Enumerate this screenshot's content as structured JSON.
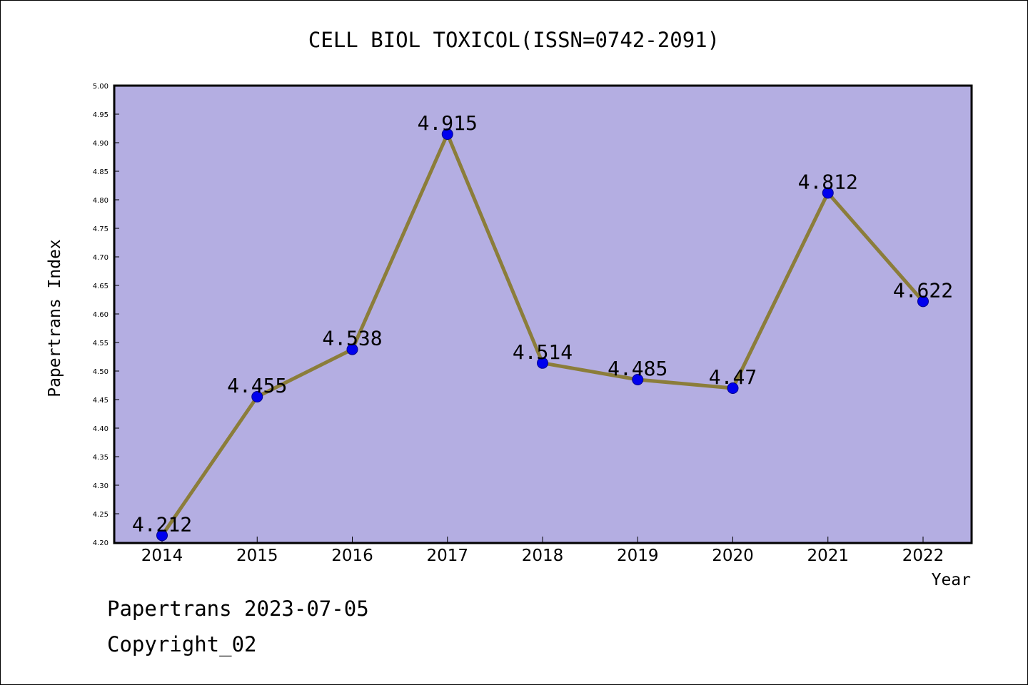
{
  "chart_data": {
    "type": "line",
    "title": "CELL BIOL TOXICOL(ISSN=0742-2091)",
    "xlabel": "Year",
    "ylabel": "Papertrans Index",
    "categories": [
      "2014",
      "2015",
      "2016",
      "2017",
      "2018",
      "2019",
      "2020",
      "2021",
      "2022"
    ],
    "series": [
      {
        "values": [
          4.212,
          4.455,
          4.538,
          4.915,
          4.514,
          4.485,
          4.47,
          4.812,
          4.622
        ],
        "labels": [
          "4.212",
          "4.455",
          "4.538",
          "4.915",
          "4.514",
          "4.485",
          "4.47",
          "4.812",
          "4.622"
        ]
      }
    ],
    "ylim": [
      4.2,
      5.0
    ],
    "yticks": [
      "4.20",
      "4.25",
      "4.30",
      "4.35",
      "4.40",
      "4.45",
      "4.50",
      "4.55",
      "4.60",
      "4.65",
      "4.70",
      "4.75",
      "4.80",
      "4.85",
      "4.90",
      "4.95",
      "5.00"
    ],
    "grid": false,
    "colors": {
      "plot_background": "#b4aee2",
      "line": "#8b7d3a",
      "marker": "#0000ee"
    }
  },
  "footer": {
    "date_line": "Papertrans 2023-07-05",
    "copyright": "Copyright_02"
  }
}
